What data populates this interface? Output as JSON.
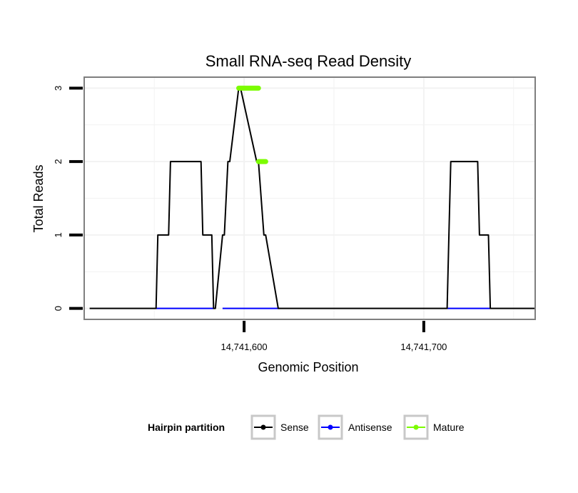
{
  "chart_data": {
    "type": "line",
    "title": "Small RNA-seq Read Density",
    "xlabel": "Genomic Position",
    "ylabel": "Total Reads",
    "xlim": [
      14741511,
      14741762
    ],
    "ylim": [
      -0.15,
      3.15
    ],
    "x_ticks": [
      14741600,
      14741700
    ],
    "x_tick_labels": [
      "14,741,600",
      "14,741,700"
    ],
    "y_ticks": [
      0,
      1,
      2,
      3
    ],
    "y_tick_labels": [
      "0",
      "1",
      "2",
      "3"
    ],
    "grid": true,
    "legend": {
      "title": "Hairpin partition",
      "position": "bottom",
      "entries": [
        "Sense",
        "Antisense",
        "Mature"
      ]
    },
    "series": [
      {
        "name": "Sense",
        "color": "#000000",
        "x": [
          14741514,
          14741551,
          14741552,
          14741558,
          14741559,
          14741576,
          14741577,
          14741582,
          14741583,
          14741584,
          14741588,
          14741589,
          14741591,
          14741592,
          14741597,
          14741598,
          14741607,
          14741608,
          14741611,
          14741612,
          14741619,
          14741620,
          14741713,
          14741714,
          14741715,
          14741730,
          14741731,
          14741736,
          14741737,
          14741762
        ],
        "values": [
          0,
          0,
          1,
          1,
          2,
          2,
          1,
          1,
          0,
          0,
          1,
          1,
          2,
          2,
          3,
          3,
          2,
          2,
          1,
          1,
          0,
          0,
          0,
          1,
          2,
          2,
          1,
          1,
          0,
          0
        ]
      },
      {
        "name": "Antisense",
        "color": "#0000ff",
        "x": [
          14741551,
          14741583,
          14741588,
          14741620,
          14741713,
          14741737
        ],
        "values": [
          0,
          0,
          0,
          0,
          0,
          0
        ]
      },
      {
        "name": "Mature",
        "color": "#7cfc00",
        "segments": [
          {
            "x": [
              14741597,
              14741608
            ],
            "y": 3
          },
          {
            "x": [
              14741608,
              14741612
            ],
            "y": 2
          }
        ]
      }
    ]
  }
}
